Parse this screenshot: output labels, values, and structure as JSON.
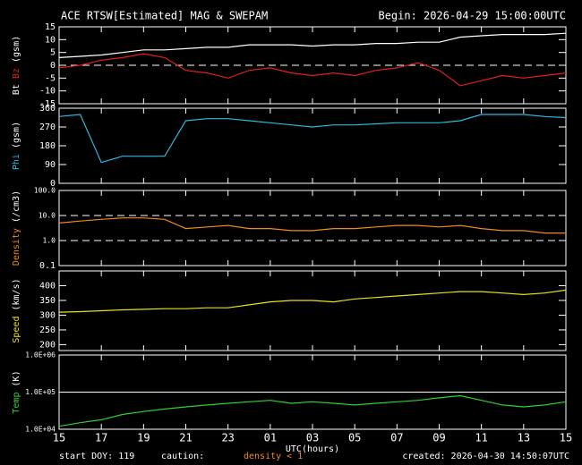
{
  "header": {
    "title": "ACE RTSW[Estimated] MAG & SWEPAM",
    "begin": "Begin: 2026-04-29 15:00:00UTC"
  },
  "footer": {
    "start": "start DOY: 119",
    "caution": "caution:",
    "density": "density < 1",
    "created": "created: 2026-04-30 14:50:07UTC"
  },
  "chart_data": [
    {
      "type": "line",
      "ylabel": "(gsm)",
      "ylim": [
        -15,
        15
      ],
      "yticks": [
        -15,
        -10,
        -5,
        0,
        5,
        10,
        15
      ],
      "xlim": [
        0,
        24
      ],
      "hlines": [
        0
      ],
      "hline_style": "dashed",
      "x": [
        0,
        1,
        2,
        3,
        4,
        5,
        6,
        7,
        8,
        9,
        10,
        11,
        12,
        13,
        14,
        15,
        16,
        17,
        18,
        19,
        20,
        21,
        22,
        23,
        24
      ],
      "series": [
        {
          "name": "Bt",
          "color": "#ffffff",
          "values": [
            3,
            3.5,
            4,
            5,
            6,
            6,
            6.5,
            7,
            7,
            8,
            8,
            8,
            7.5,
            8,
            8,
            8.5,
            8.5,
            9,
            9,
            11,
            11.5,
            12,
            12,
            12,
            12.5
          ]
        },
        {
          "name": "Bz",
          "color": "#e02020",
          "values": [
            -1,
            0,
            2,
            3,
            4.5,
            3,
            -2,
            -3,
            -5,
            -2,
            -1,
            -3,
            -4,
            -3,
            -4,
            -2,
            -1,
            1,
            -2,
            -8,
            -6,
            -4,
            -5,
            -4,
            -3
          ]
        }
      ]
    },
    {
      "type": "line",
      "ylabel": "(gsm)",
      "ylim": [
        0,
        360
      ],
      "yticks": [
        0,
        90,
        180,
        270,
        360
      ],
      "xlim": [
        0,
        24
      ],
      "x": [
        0,
        1,
        2,
        3,
        4,
        5,
        6,
        7,
        8,
        9,
        10,
        11,
        12,
        13,
        14,
        15,
        16,
        17,
        18,
        19,
        20,
        21,
        22,
        23,
        24
      ],
      "series": [
        {
          "name": "Phi",
          "color": "#30b8e0",
          "values": [
            320,
            330,
            100,
            130,
            130,
            130,
            300,
            310,
            310,
            300,
            290,
            280,
            270,
            280,
            280,
            285,
            290,
            290,
            290,
            300,
            330,
            330,
            330,
            320,
            315
          ]
        }
      ]
    },
    {
      "type": "line",
      "ylabel": "(/cm3)",
      "log": true,
      "ylim": [
        0.1,
        100
      ],
      "yticks": [
        0.1,
        {
          "value": 1,
          "label": "1.0"
        },
        {
          "value": 10,
          "label": "10.0"
        },
        {
          "value": 100,
          "label": "100.0"
        }
      ],
      "xlim": [
        0,
        24
      ],
      "hlines": [
        1,
        10
      ],
      "hline_style": "dashed",
      "x": [
        0,
        1,
        2,
        3,
        4,
        5,
        6,
        7,
        8,
        9,
        10,
        11,
        12,
        13,
        14,
        15,
        16,
        17,
        18,
        19,
        20,
        21,
        22,
        23,
        24
      ],
      "series": [
        {
          "name": "Density",
          "color": "#f08a20",
          "values": [
            5,
            6,
            7,
            8,
            8,
            7,
            3,
            3.5,
            4,
            3,
            3,
            2.5,
            2.5,
            3,
            3,
            3.5,
            4,
            4,
            3.5,
            4,
            3,
            2.5,
            2.5,
            2,
            2
          ]
        }
      ]
    },
    {
      "type": "line",
      "ylabel": "(km/s)",
      "ylim": [
        180,
        450
      ],
      "yticks": [
        200,
        250,
        300,
        350,
        400
      ],
      "xlim": [
        0,
        24
      ],
      "x": [
        0,
        1,
        2,
        3,
        4,
        5,
        6,
        7,
        8,
        9,
        10,
        11,
        12,
        13,
        14,
        15,
        16,
        17,
        18,
        19,
        20,
        21,
        22,
        23,
        24
      ],
      "series": [
        {
          "name": "Speed",
          "color": "#e8e020",
          "values": [
            310,
            312,
            315,
            318,
            320,
            322,
            322,
            325,
            325,
            335,
            345,
            350,
            350,
            345,
            355,
            360,
            365,
            370,
            375,
            380,
            380,
            375,
            370,
            375,
            385
          ]
        }
      ]
    },
    {
      "type": "line",
      "ylabel": "(K)",
      "log": true,
      "ylim": [
        10000,
        1000000
      ],
      "yticks": [
        {
          "value": 10000,
          "label": "1.0E+04"
        },
        {
          "value": 100000,
          "label": "1.0E+05"
        },
        {
          "value": 1000000,
          "label": "1.0E+06"
        }
      ],
      "hlines": [
        100000
      ],
      "hline_style": "solid",
      "xlabel": "UTC(hours)",
      "xlim": [
        0,
        24
      ],
      "xticks": [
        {
          "value": 0,
          "label": "15"
        },
        {
          "value": 2,
          "label": "17"
        },
        {
          "value": 4,
          "label": "19"
        },
        {
          "value": 6,
          "label": "21"
        },
        {
          "value": 8,
          "label": "23"
        },
        {
          "value": 10,
          "label": "01"
        },
        {
          "value": 12,
          "label": "03"
        },
        {
          "value": 14,
          "label": "05"
        },
        {
          "value": 16,
          "label": "07"
        },
        {
          "value": 18,
          "label": "09"
        },
        {
          "value": 20,
          "label": "11"
        },
        {
          "value": 22,
          "label": "13"
        },
        {
          "value": 24,
          "label": "15"
        }
      ],
      "x": [
        0,
        1,
        2,
        3,
        4,
        5,
        6,
        7,
        8,
        9,
        10,
        11,
        12,
        13,
        14,
        15,
        16,
        17,
        18,
        19,
        20,
        21,
        22,
        23,
        24
      ],
      "series": [
        {
          "name": "Temp",
          "color": "#30d030",
          "values": [
            12000,
            15000,
            18000,
            25000,
            30000,
            35000,
            40000,
            45000,
            50000,
            55000,
            60000,
            50000,
            55000,
            50000,
            45000,
            50000,
            55000,
            60000,
            70000,
            80000,
            60000,
            45000,
            40000,
            45000,
            55000
          ]
        }
      ]
    }
  ]
}
